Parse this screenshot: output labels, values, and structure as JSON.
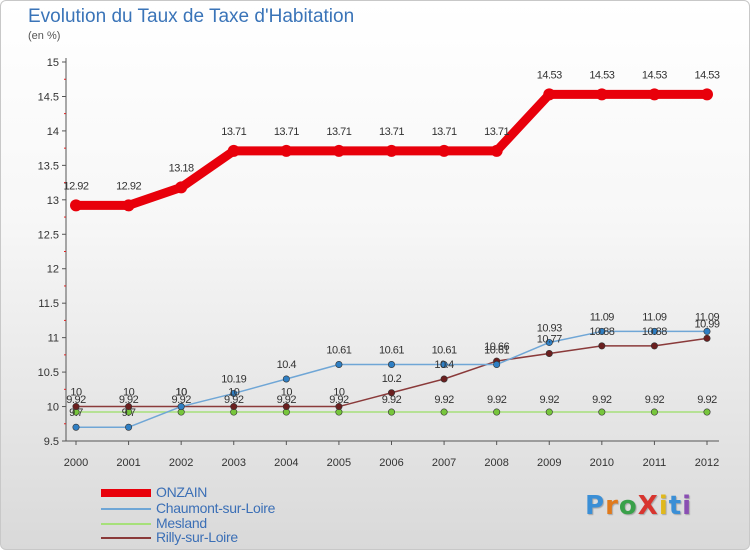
{
  "title": "Evolution du Taux de Taxe d'Habitation",
  "subtitle": "(en %)",
  "logo": {
    "text": "ProXiti",
    "colors": [
      "#3b8fd6",
      "#e07a1c",
      "#3aa14a",
      "#d8352f",
      "#e0b81c",
      "#3b8fd6",
      "#8a4fb3"
    ]
  },
  "chart_data": {
    "type": "line",
    "title": "Evolution du Taux de Taxe d'Habitation",
    "subtitle": "(en %)",
    "x": [
      "2000",
      "2001",
      "2002",
      "2003",
      "2004",
      "2005",
      "2006",
      "2007",
      "2008",
      "2009",
      "2010",
      "2011",
      "2012"
    ],
    "ylim": [
      9.5,
      15
    ],
    "yticks": [
      "9.5",
      "10",
      "10.5",
      "11",
      "11.5",
      "12",
      "12.5",
      "13",
      "13.5",
      "14",
      "14.5",
      "15"
    ],
    "grid": false,
    "legend_position": "bottom-left",
    "series": [
      {
        "name": "ONZAIN",
        "color": "#e8000b",
        "values": [
          12.92,
          12.92,
          13.18,
          13.71,
          13.71,
          13.71,
          13.71,
          13.71,
          13.71,
          14.53,
          14.53,
          14.53,
          14.53
        ],
        "labels": [
          "12.92",
          "12.92",
          "13.18",
          "13.71",
          "13.71",
          "13.71",
          "13.71",
          "13.71",
          "13.71",
          "14.53",
          "14.53",
          "14.53",
          "14.53"
        ]
      },
      {
        "name": "Chaumont-sur-Loire",
        "color": "#6fa6d6",
        "marker": "#2f7fc4",
        "values": [
          9.7,
          9.7,
          10,
          10.19,
          10.4,
          10.61,
          10.61,
          10.61,
          10.61,
          10.93,
          11.09,
          11.09,
          11.09
        ],
        "labels": [
          "9.7",
          "9.7",
          "10",
          "10.19",
          "10.4",
          "10.61",
          "10.61",
          "10.61",
          "10.61",
          "10.93",
          "11.09",
          "11.09",
          "11.09"
        ]
      },
      {
        "name": "Mesland",
        "color": "#a6e07a",
        "marker": "#77c63c",
        "values": [
          9.92,
          9.92,
          9.92,
          9.92,
          9.92,
          9.92,
          9.92,
          9.92,
          9.92,
          9.92,
          9.92,
          9.92,
          9.92
        ],
        "labels": [
          "9.92",
          "9.92",
          "9.92",
          "9.92",
          "9.92",
          "9.92",
          "9.92",
          "9.92",
          "9.92",
          "9.92",
          "9.92",
          "9.92",
          "9.92"
        ]
      },
      {
        "name": "Rilly-sur-Loire",
        "color": "#8a3a3a",
        "marker": "#6b1f1f",
        "values": [
          10,
          10,
          10,
          10,
          10,
          10,
          10.2,
          10.4,
          10.66,
          10.77,
          10.88,
          10.88,
          10.99
        ],
        "labels": [
          "10",
          "10",
          "10",
          "10",
          "10",
          "10",
          "10.2",
          "10.4",
          "10.66",
          "10.77",
          "10.88",
          "10.88",
          "10.99"
        ]
      }
    ]
  }
}
